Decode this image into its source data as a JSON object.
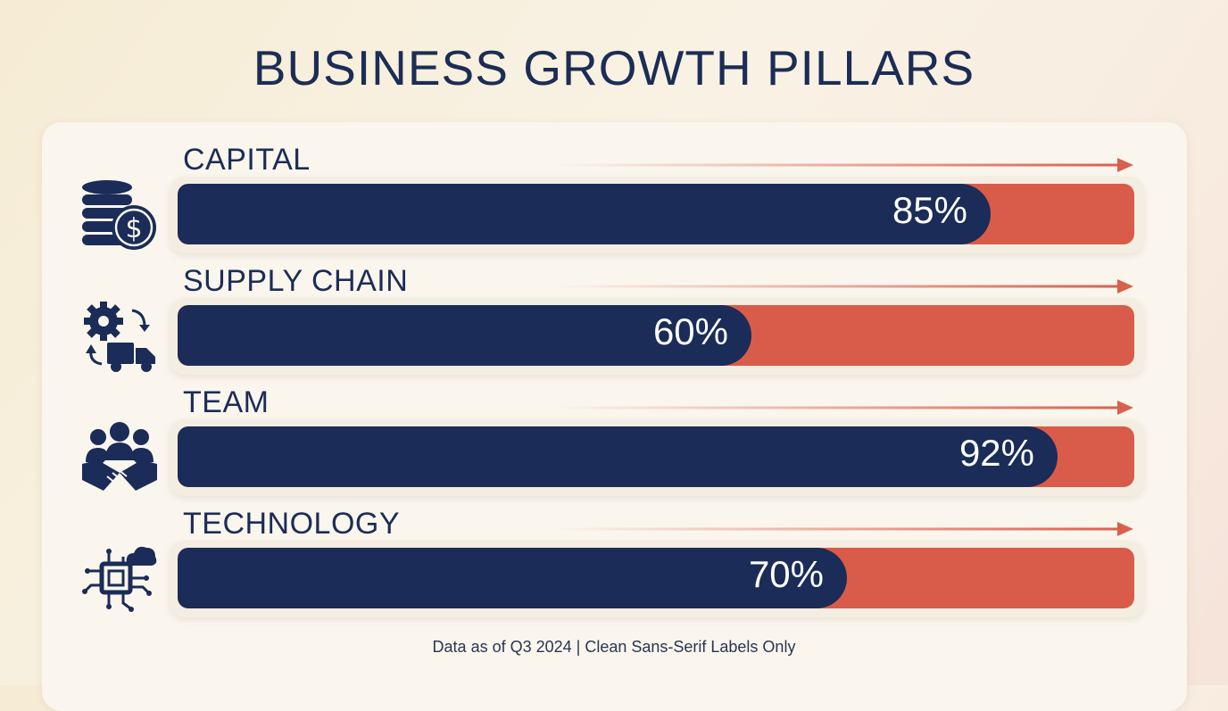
{
  "title": "BUSINESS GROWTH PILLARS",
  "footer": "Data as of Q3 2024 | Clean Sans-Serif Labels Only",
  "colors": {
    "navy": "#1a2c57",
    "coral": "#d95b4a",
    "arrow": "#d9604d"
  },
  "chart_data": {
    "type": "bar",
    "orientation": "horizontal",
    "title": "BUSINESS GROWTH PILLARS",
    "categories": [
      "CAPITAL",
      "SUPPLY CHAIN",
      "TEAM",
      "TECHNOLOGY"
    ],
    "values": [
      85,
      60,
      92,
      70
    ],
    "value_labels": [
      "85%",
      "60%",
      "92%",
      "70%"
    ],
    "xlim": [
      0,
      100
    ],
    "icons": [
      "coins-dollar-icon",
      "gear-truck-icon",
      "team-handshake-icon",
      "chip-cloud-icon"
    ]
  }
}
